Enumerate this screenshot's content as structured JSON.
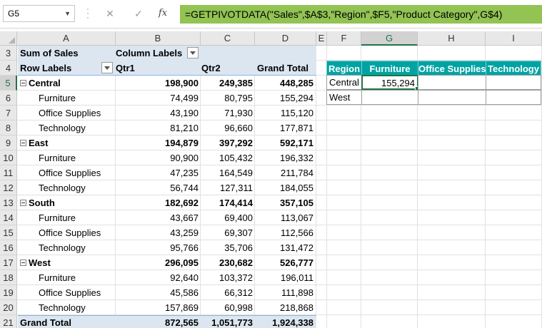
{
  "name_box": "G5",
  "formula_bar": {
    "fx_label": "fx",
    "cancel_glyph": "✕",
    "enter_glyph": "✓",
    "formula": "=GETPIVOTDATA(\"Sales\",$A$3,\"Region\",$F5,\"Product Category\",G$4)"
  },
  "columns": [
    "A",
    "B",
    "C",
    "D",
    "E",
    "F",
    "G",
    "H",
    "I"
  ],
  "rows": [
    "3",
    "4",
    "5",
    "6",
    "7",
    "8",
    "9",
    "10",
    "11",
    "12",
    "13",
    "14",
    "15",
    "16",
    "17",
    "18",
    "19",
    "20",
    "21"
  ],
  "pivot": {
    "sum_label": "Sum of Sales",
    "column_labels": "Column Labels",
    "row_labels": "Row Labels",
    "qtr1": "Qtr1",
    "qtr2": "Qtr2",
    "grand_total_header": "Grand Total",
    "regions": [
      {
        "name": "Central",
        "q1": "198,900",
        "q2": "249,385",
        "total": "448,285",
        "items": [
          {
            "name": "Furniture",
            "q1": "74,499",
            "q2": "80,795",
            "total": "155,294"
          },
          {
            "name": "Office Supplies",
            "q1": "43,190",
            "q2": "71,930",
            "total": "115,120"
          },
          {
            "name": "Technology",
            "q1": "81,210",
            "q2": "96,660",
            "total": "177,871"
          }
        ]
      },
      {
        "name": "East",
        "q1": "194,879",
        "q2": "397,292",
        "total": "592,171",
        "items": [
          {
            "name": "Furniture",
            "q1": "90,900",
            "q2": "105,432",
            "total": "196,332"
          },
          {
            "name": "Office Supplies",
            "q1": "47,235",
            "q2": "164,549",
            "total": "211,784"
          },
          {
            "name": "Technology",
            "q1": "56,744",
            "q2": "127,311",
            "total": "184,055"
          }
        ]
      },
      {
        "name": "South",
        "q1": "182,692",
        "q2": "174,414",
        "total": "357,105",
        "items": [
          {
            "name": "Furniture",
            "q1": "43,667",
            "q2": "69,400",
            "total": "113,067"
          },
          {
            "name": "Office Supplies",
            "q1": "43,259",
            "q2": "69,307",
            "total": "112,566"
          },
          {
            "name": "Technology",
            "q1": "95,766",
            "q2": "35,706",
            "total": "131,472"
          }
        ]
      },
      {
        "name": "West",
        "q1": "296,095",
        "q2": "230,682",
        "total": "526,777",
        "items": [
          {
            "name": "Furniture",
            "q1": "92,640",
            "q2": "103,372",
            "total": "196,011"
          },
          {
            "name": "Office Supplies",
            "q1": "45,586",
            "q2": "66,312",
            "total": "111,898"
          },
          {
            "name": "Technology",
            "q1": "157,869",
            "q2": "60,998",
            "total": "218,868"
          }
        ]
      }
    ],
    "grand_total": {
      "label": "Grand Total",
      "q1": "872,565",
      "q2": "1,051,773",
      "total": "1,924,338"
    }
  },
  "lookup_table": {
    "headers": [
      "Region",
      "Furniture",
      "Office Supplies",
      "Technology"
    ],
    "rows": [
      {
        "region": "Central",
        "values": [
          "155,294",
          "",
          ""
        ]
      },
      {
        "region": "West",
        "values": [
          "",
          "",
          ""
        ]
      }
    ]
  },
  "colors": {
    "formula_highlight": "#92c353",
    "table_header": "#00a3a4",
    "pivot_band": "#dce6f1",
    "selection": "#217346"
  }
}
